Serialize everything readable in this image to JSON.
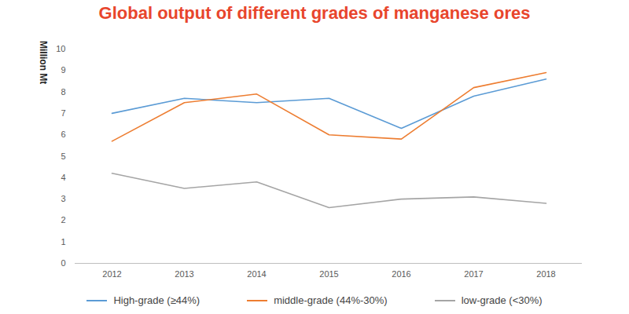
{
  "chart_data": {
    "type": "line",
    "title": "Global output of different grades of manganese ores",
    "y_label": "Million Mt",
    "categories": [
      "2012",
      "2013",
      "2014",
      "2015",
      "2016",
      "2017",
      "2018"
    ],
    "series": [
      {
        "name": "High-grade (≥44%)",
        "color": "#5b9bd5",
        "values": [
          7.0,
          7.7,
          7.5,
          7.7,
          6.3,
          7.8,
          8.6
        ]
      },
      {
        "name": "middle-grade (44%-30%)",
        "color": "#ed7d31",
        "values": [
          5.7,
          7.5,
          7.9,
          6.0,
          5.8,
          8.2,
          8.9
        ]
      },
      {
        "name": "low-grade (<30%)",
        "color": "#a5a5a5",
        "values": [
          4.2,
          3.5,
          3.8,
          2.6,
          3.0,
          3.1,
          2.8
        ]
      }
    ],
    "ylim": [
      0,
      10
    ],
    "yticks": [
      0,
      1,
      2,
      3,
      4,
      5,
      6,
      7,
      8,
      9,
      10
    ],
    "grid": false,
    "legend": "bottom"
  }
}
